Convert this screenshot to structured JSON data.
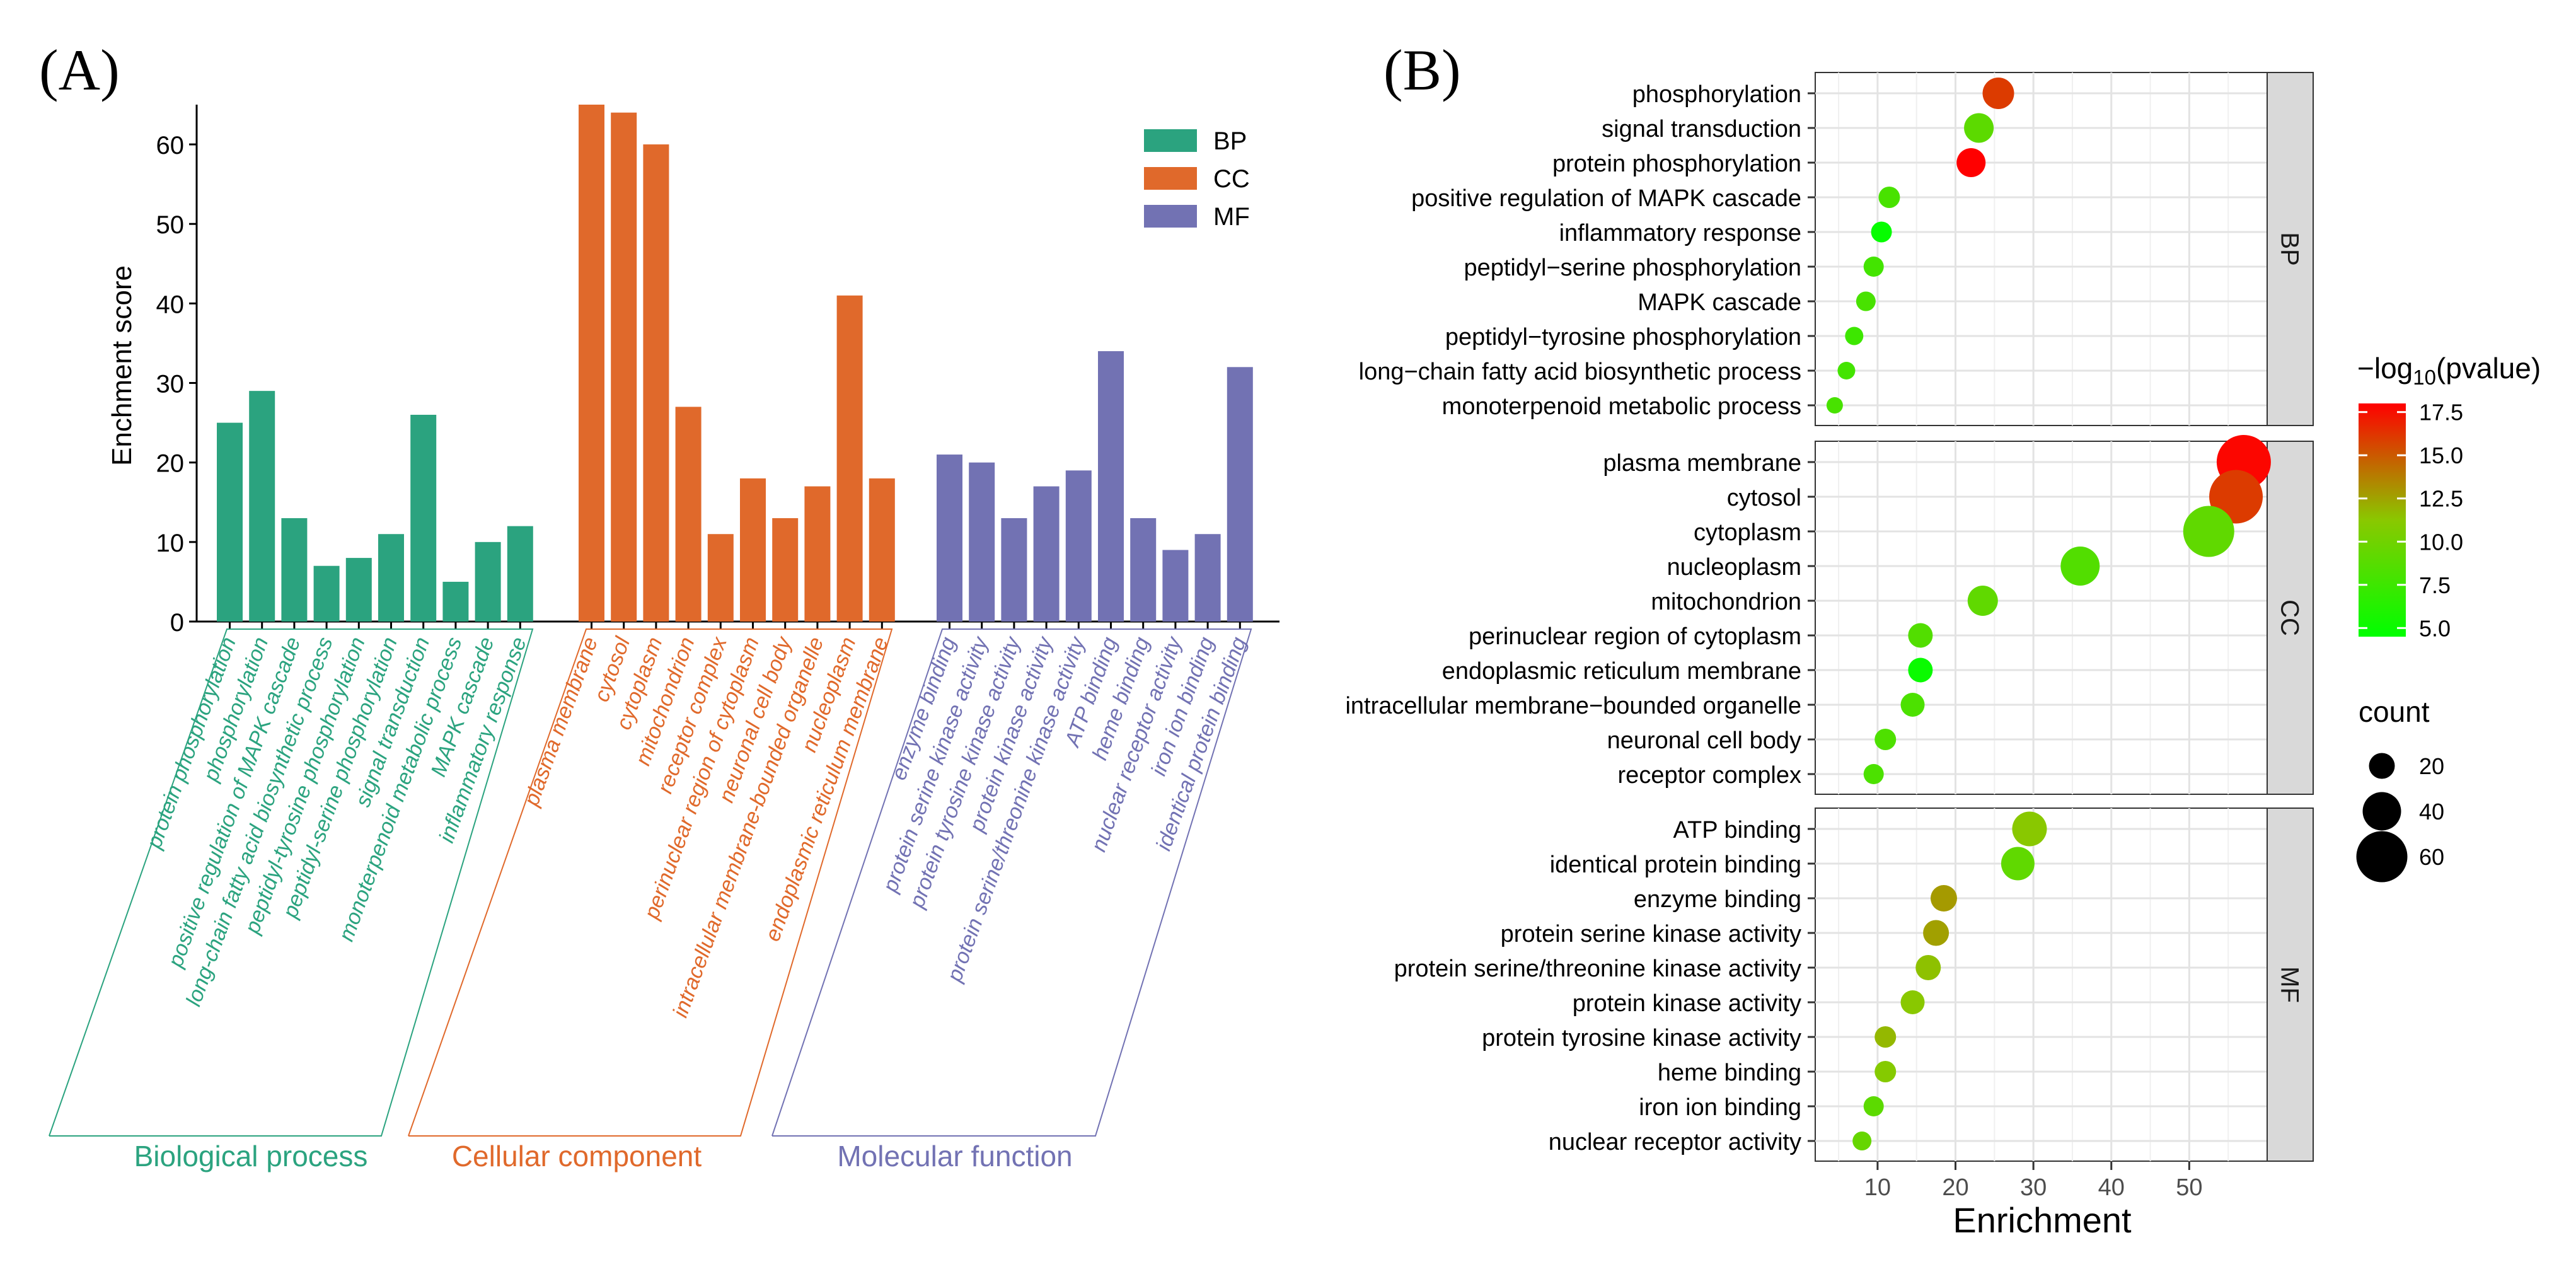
{
  "panel_a_label": "(A)",
  "panel_b_label": "(B)",
  "colors": {
    "BP": "#2ba37f",
    "CC": "#e0692b",
    "MF": "#7272b3",
    "strip_bg": "#d9d9d9"
  },
  "chart_data": [
    {
      "type": "bar",
      "ylabel": "Enchment score",
      "ylim": [
        0,
        65
      ],
      "yticks": [
        0,
        10,
        20,
        30,
        40,
        50,
        60
      ],
      "legend": [
        {
          "key": "BP",
          "label": "BP"
        },
        {
          "key": "CC",
          "label": "CC"
        },
        {
          "key": "MF",
          "label": "MF"
        }
      ],
      "groups": [
        {
          "key": "BP",
          "title": "Biological process",
          "categories": [
            "protein phosphorylation",
            "phosphorylation",
            "positive regulation of MAPK cascade",
            "long-chain fatty acid biosynthetic process",
            "peptidyl-tyrosine phosphorylation",
            "peptidyl-serine phosphorylation",
            "signal transduction",
            "monoterpenoid metabolic process",
            "MAPK cascade",
            "inflammatory response"
          ],
          "values": [
            25,
            29,
            13,
            7,
            8,
            11,
            26,
            5,
            10,
            12
          ]
        },
        {
          "key": "CC",
          "title": "Cellular component",
          "categories": [
            "plasma membrane",
            "cytosol",
            "cytoplasm",
            "mitochondrion",
            "receptor complex",
            "perinuclear region of cytoplasm",
            "neuronal cell body",
            "intracellular membrane-bounded organelle",
            "nucleoplasm",
            "endoplasmic reticulum membrane"
          ],
          "values": [
            65,
            64,
            60,
            27,
            11,
            18,
            13,
            17,
            41,
            18
          ]
        },
        {
          "key": "MF",
          "title": "Molecular function",
          "categories": [
            "enzyme binding",
            "protein serine kinase activity",
            "protein tyrosine kinase activity",
            "protein kinase activity",
            "protein serine/threonine kinase activity",
            "ATP binding",
            "heme binding",
            "nuclear receptor activity",
            "iron ion binding",
            "identical protein binding"
          ],
          "values": [
            21,
            20,
            13,
            17,
            19,
            34,
            13,
            9,
            11,
            32
          ]
        }
      ]
    },
    {
      "type": "scatter",
      "xlabel": "Enrichment",
      "xlim": [
        2,
        60
      ],
      "xticks": [
        10,
        20,
        30,
        40,
        50
      ],
      "color_legend": {
        "title_prefix": "−log",
        "title_sub": "10",
        "title_suffix": "(pvalue)",
        "ticks": [
          "17.5",
          "15.0",
          "12.5",
          "10.0",
          "7.5",
          "5.0"
        ],
        "tick_values": [
          17.5,
          15.0,
          12.5,
          10.0,
          7.5,
          5.0
        ],
        "range": [
          4.5,
          18.0
        ]
      },
      "size_legend": {
        "title": "count",
        "labels": [
          "20",
          "40",
          "60"
        ],
        "values": [
          20,
          40,
          60
        ]
      },
      "facets": [
        {
          "strip": "BP",
          "terms": [
            "phosphorylation",
            "signal transduction",
            "protein phosphorylation",
            "positive regulation of MAPK cascade",
            "inflammatory response",
            "peptidyl−serine phosphorylation",
            "MAPK cascade",
            "peptidyl−tyrosine phosphorylation",
            "long−chain fatty acid biosynthetic process",
            "monoterpenoid metabolic process"
          ],
          "enrichment": [
            25.5,
            23,
            22,
            11.5,
            10.5,
            9.5,
            8.5,
            7,
            6,
            4.5
          ],
          "count": [
            29,
            26,
            25,
            13,
            12,
            11,
            10,
            8,
            7,
            5
          ],
          "neglog10p": [
            16.0,
            9.0,
            18.0,
            8.0,
            4.8,
            7.8,
            8.0,
            7.5,
            7.8,
            8.0
          ]
        },
        {
          "strip": "CC",
          "terms": [
            "plasma membrane",
            "cytosol",
            "cytoplasm",
            "nucleoplasm",
            "mitochondrion",
            "perinuclear region of cytoplasm",
            "endoplasmic reticulum membrane",
            "intracellular membrane−bounded organelle",
            "neuronal cell body",
            "receptor complex"
          ],
          "enrichment": [
            57,
            56,
            52.5,
            36,
            23.5,
            15.5,
            15.5,
            14.5,
            11,
            9.5
          ],
          "count": [
            65,
            64,
            60,
            41,
            27,
            18,
            18,
            17,
            13,
            11
          ],
          "neglog10p": [
            17.8,
            16.0,
            9.2,
            8.5,
            9.2,
            8.5,
            5.0,
            8.2,
            8.3,
            8.2
          ]
        },
        {
          "strip": "MF",
          "terms": [
            "ATP binding",
            "identical protein binding",
            "enzyme binding",
            "protein serine kinase activity",
            "protein serine/threonine kinase activity",
            "protein kinase activity",
            "protein tyrosine kinase activity",
            "heme binding",
            "iron ion binding",
            "nuclear receptor activity"
          ],
          "enrichment": [
            29.5,
            28,
            18.5,
            17.5,
            16.5,
            14.5,
            11,
            11,
            9.5,
            8
          ],
          "count": [
            34,
            32,
            21,
            20,
            19,
            17,
            13,
            13,
            11,
            9
          ],
          "neglog10p": [
            11.2,
            9.2,
            12.8,
            12.6,
            11.5,
            11.2,
            11.8,
            11.0,
            9.0,
            9.5
          ]
        }
      ]
    }
  ]
}
